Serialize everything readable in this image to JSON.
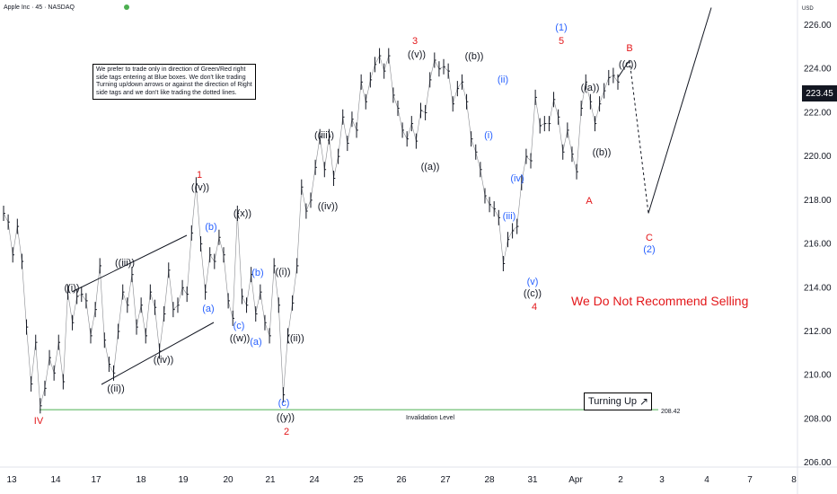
{
  "header": {
    "title": "Apple Inc · 45 · NASDAQ"
  },
  "currency": "USD",
  "note": "We prefer to trade only in direction of Green/Red right side tags entering at Blue boxes. We don't like trading Turning up/down arrows or against the direction of Right side tags and we don't like trading the dotted lines.",
  "warning": "We Do Not Recommend Selling",
  "turning_label": "Turning Up",
  "invalidation": {
    "label": "Invalidation Level",
    "value": "208.42",
    "price": 208.42
  },
  "current_price": "223.45",
  "colors": {
    "red": "#e3171a",
    "blue": "#2962ff",
    "black": "#131722",
    "green": "#4caf50",
    "grid": "#f0f3fa"
  },
  "chart_data": {
    "type": "line",
    "title": "",
    "ylim": [
      206,
      227
    ],
    "y_ticks": [
      "226.00",
      "224.00",
      "222.00",
      "220.00",
      "218.00",
      "216.00",
      "214.00",
      "212.00",
      "210.00",
      "208.00",
      "206.00"
    ],
    "x_ticks": [
      "13",
      "14",
      "17",
      "18",
      "19",
      "20",
      "21",
      "24",
      "25",
      "26",
      "27",
      "28",
      "31",
      "Apr",
      "2",
      "3",
      "4",
      "7",
      "8"
    ],
    "series": [
      {
        "values": [
          217.4,
          217.0,
          215.5,
          216.8,
          215.2,
          212.2,
          209.6,
          211.5,
          208.6,
          209.4,
          210.8,
          210.1,
          211.5,
          209.7,
          213.8,
          212.4,
          213.6,
          213.7,
          213.4,
          211.8,
          213.0,
          215.0,
          211.6,
          210.5,
          210.1,
          212.0,
          213.8,
          213.2,
          214.6,
          212.2,
          213.2,
          211.8,
          213.8,
          213.1,
          211.1,
          212.8,
          214.8,
          213.0,
          213.2,
          214.0,
          213.7,
          216.5,
          218.7,
          216.0,
          213.8,
          215.5,
          215.2,
          216.3,
          215.5,
          213.4,
          212.6,
          217.4,
          213.6,
          213.2,
          214.6,
          212.8,
          213.8,
          212.4,
          211.8,
          215.0,
          213.2,
          209.1,
          211.8,
          213.3,
          215.0,
          218.6,
          217.5,
          218.0,
          219.5,
          220.9,
          219.4,
          220.9,
          219.0,
          220.0,
          221.8,
          220.6,
          221.7,
          221.2,
          223.4,
          222.5,
          223.5,
          224.2,
          224.6,
          223.9,
          224.6,
          222.8,
          222.2,
          221.2,
          220.8,
          221.5,
          220.7,
          222.1,
          222.0,
          223.5,
          224.4,
          224.0,
          224.1,
          223.9,
          222.4,
          223.1,
          223.4,
          222.5,
          220.8,
          220.2,
          219.4,
          218.2,
          217.8,
          217.6,
          217.2,
          215.1,
          216.2,
          216.6,
          216.8,
          218.8,
          220.0,
          219.8,
          222.7,
          221.4,
          221.5,
          221.5,
          222.6,
          221.8,
          220.2,
          221.2,
          220.1,
          219.3,
          222.2,
          223.4,
          222.5,
          221.5,
          222.4,
          223.0,
          223.6,
          223.7,
          223.4
        ]
      }
    ],
    "projection": [
      {
        "label": "B",
        "y": 224.4
      },
      {
        "label": "C (2)",
        "y": 217.4
      },
      {
        "label": "",
        "y": 226.8
      }
    ],
    "wave_labels": [
      {
        "text": "IV",
        "color": "red",
        "y": 208.6
      },
      {
        "text": "((i))",
        "color": "black",
        "y": 213.8
      },
      {
        "text": "((ii))",
        "color": "black",
        "y": 210.1
      },
      {
        "text": "((iii))",
        "color": "black",
        "y": 214.6
      },
      {
        "text": "((iv))",
        "color": "black",
        "y": 211.5
      },
      {
        "text": "1",
        "color": "red",
        "y": 218.8
      },
      {
        "text": "((v))",
        "color": "black",
        "y": 218.7
      },
      {
        "text": "(b)",
        "color": "blue",
        "y": 216.5
      },
      {
        "text": "(a)",
        "color": "blue",
        "y": 213.7
      },
      {
        "text": "((x))",
        "color": "black",
        "y": 217.4
      },
      {
        "text": "(c)",
        "color": "blue",
        "y": 213.4
      },
      {
        "text": "((w))",
        "color": "black",
        "y": 212.6
      },
      {
        "text": "(b)",
        "color": "blue",
        "y": 214.6
      },
      {
        "text": "(a)",
        "color": "blue",
        "y": 212.4
      },
      {
        "text": "((i))",
        "color": "black",
        "y": 215.0
      },
      {
        "text": "((ii))",
        "color": "black",
        "y": 211.8
      },
      {
        "text": "(c)",
        "color": "blue",
        "y": 209.1
      },
      {
        "text": "((y))",
        "color": "black",
        "y": 208.6
      },
      {
        "text": "2",
        "color": "red",
        "y": 208.0
      },
      {
        "text": "((iii))",
        "color": "black",
        "y": 221.7
      },
      {
        "text": "((iv))",
        "color": "black",
        "y": 218.6
      },
      {
        "text": "3",
        "color": "red",
        "y": 225.3
      },
      {
        "text": "((v))",
        "color": "black",
        "y": 224.6
      },
      {
        "text": "((a))",
        "color": "black",
        "y": 220.0
      },
      {
        "text": "((b))",
        "color": "black",
        "y": 224.6
      },
      {
        "text": "(ii)",
        "color": "blue",
        "y": 223.5
      },
      {
        "text": "(i)",
        "color": "blue",
        "y": 222.2
      },
      {
        "text": "(iv)",
        "color": "blue",
        "y": 219.4
      },
      {
        "text": "(iii)",
        "color": "blue",
        "y": 217.6
      },
      {
        "text": "(v)",
        "color": "blue",
        "y": 215.1
      },
      {
        "text": "((c))",
        "color": "black",
        "y": 214.7
      },
      {
        "text": "4",
        "color": "red",
        "y": 214.0
      },
      {
        "text": "(1)",
        "color": "blue",
        "y": 226.4
      },
      {
        "text": "5",
        "color": "red",
        "y": 225.7
      },
      {
        "text": "((a))",
        "color": "black",
        "y": 223.4
      },
      {
        "text": "((b))",
        "color": "black",
        "y": 220.6
      },
      {
        "text": "A",
        "color": "red",
        "y": 218.7
      },
      {
        "text": "B",
        "color": "red",
        "y": 225.3
      },
      {
        "text": "((c))",
        "color": "black",
        "y": 224.6
      },
      {
        "text": "C",
        "color": "red",
        "y": 216.8
      },
      {
        "text": "(2)",
        "color": "blue",
        "y": 216.0
      }
    ]
  }
}
